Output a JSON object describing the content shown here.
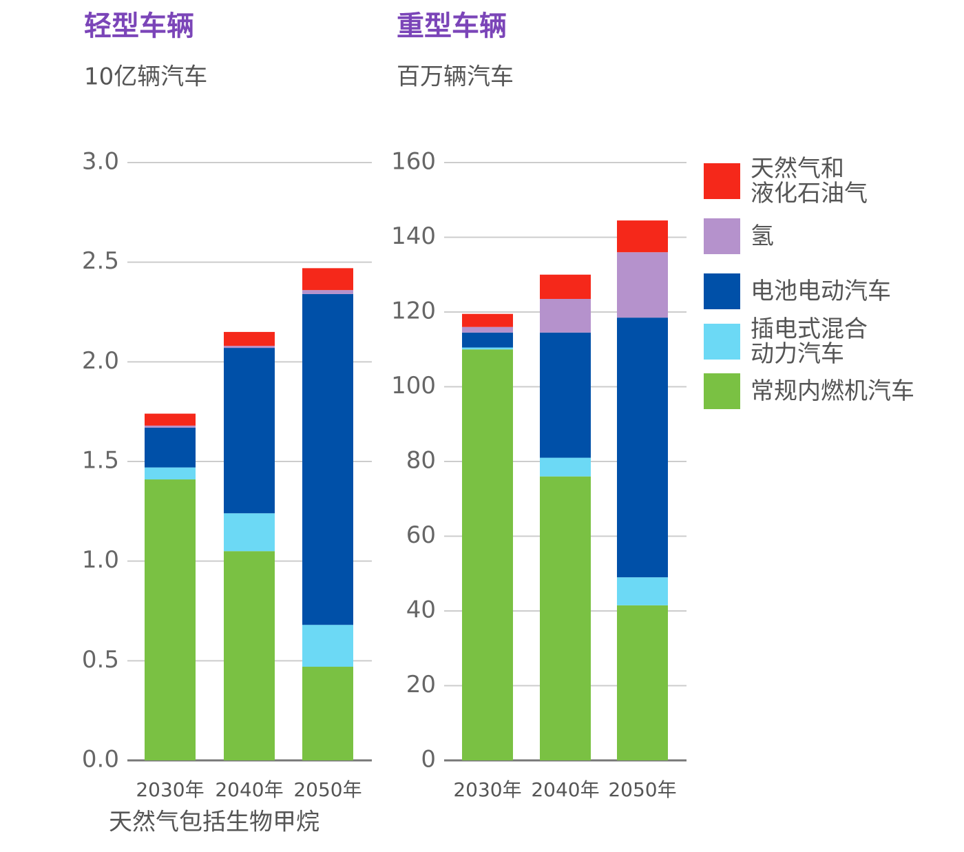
{
  "chart_data": [
    {
      "type": "stacked-bar",
      "title": "轻型车辆",
      "subtitle": "10亿辆汽车",
      "note": "天然气包括生物甲烷",
      "categories": [
        "2030年",
        "2040年",
        "2050年"
      ],
      "ylim": [
        0,
        3
      ],
      "yticks": [
        {
          "value": 0,
          "label": "0.0"
        },
        0.5,
        {
          "value": 1,
          "label": "1.0"
        },
        1.5,
        {
          "value": 2,
          "label": "2.0"
        },
        2.5,
        {
          "value": 3,
          "label": "3.0"
        }
      ],
      "grid": true,
      "series": [
        {
          "name": "常规内燃机汽车",
          "color": "#7ac143",
          "values": [
            1.41,
            1.05,
            0.47
          ]
        },
        {
          "name": "插电式混合\n动力汽车",
          "color": "#6cd9f5",
          "values": [
            0.06,
            0.19,
            0.21
          ]
        },
        {
          "name": "电池电动汽车",
          "color": "#0050a8",
          "values": [
            0.2,
            0.83,
            1.66
          ]
        },
        {
          "name": "氢",
          "color": "#b592cc",
          "values": [
            0.01,
            0.01,
            0.02
          ]
        },
        {
          "name": "天然气和\n液化石油气",
          "color": "#f5281a",
          "values": [
            0.06,
            0.07,
            0.11
          ]
        }
      ]
    },
    {
      "type": "stacked-bar",
      "title": "重型车辆",
      "subtitle": "百万辆汽车",
      "categories": [
        "2030年",
        "2040年",
        "2050年"
      ],
      "ylim": [
        0,
        160
      ],
      "yticks": [
        0,
        20,
        40,
        60,
        80,
        100,
        120,
        140,
        160
      ],
      "grid": true,
      "series": [
        {
          "color": "#7ac143",
          "values": [
            110,
            76,
            41.5
          ]
        },
        {
          "color": "#6cd9f5",
          "values": [
            0.5,
            5,
            7.5
          ]
        },
        {
          "color": "#0050a8",
          "values": [
            4,
            33.5,
            69.5
          ]
        },
        {
          "color": "#b592cc",
          "values": [
            1.5,
            9,
            17.5
          ]
        },
        {
          "color": "#f5281a",
          "values": [
            3.5,
            6.5,
            8.5
          ]
        }
      ]
    }
  ]
}
